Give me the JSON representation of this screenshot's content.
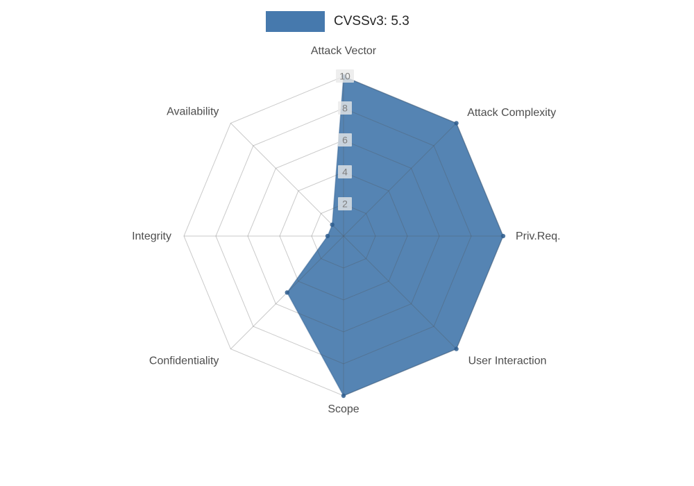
{
  "chart_data": {
    "type": "radar",
    "legend": "CVSSv3: 5.3",
    "legend_position": "top-center",
    "axes": [
      "Attack Vector",
      "Attack Complexity",
      "Priv.Req.",
      "User Interaction",
      "Scope",
      "Confidentiality",
      "Integrity",
      "Availability"
    ],
    "values": [
      10,
      10,
      10,
      10,
      10,
      5,
      1,
      1
    ],
    "ticks": [
      2,
      4,
      6,
      8,
      10
    ],
    "range": [
      0,
      10
    ],
    "grid": true,
    "color": "#4679ad",
    "edge_color": "#2e5d8e",
    "grid_color": "#c8c8c8",
    "axis_label_color": "#4d4d4d",
    "tick_label_color": "#7f7f7f"
  }
}
